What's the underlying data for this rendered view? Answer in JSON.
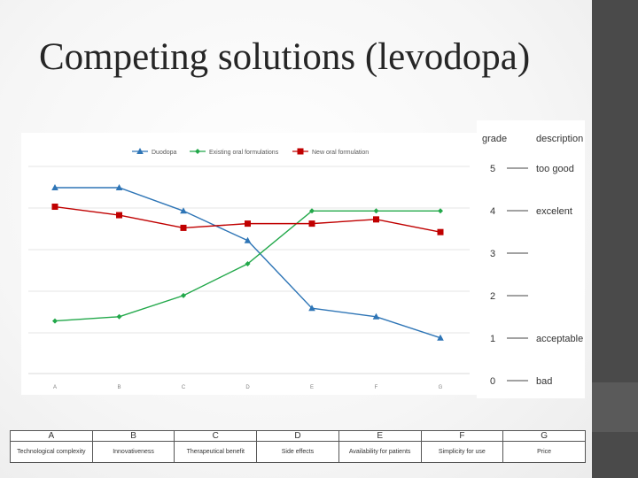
{
  "slide": {
    "title": "Competing solutions (levodopa)"
  },
  "chart_data": {
    "type": "line",
    "title": "",
    "xlabel": "",
    "ylabel": "",
    "categories": [
      "A",
      "B",
      "C",
      "D",
      "E",
      "F",
      "G"
    ],
    "ylim": [
      0.5,
      5.0
    ],
    "grid": true,
    "legend_position": "top",
    "series": [
      {
        "name": "Duodopa",
        "color": "#2e75b6",
        "marker": "triangle",
        "values": [
          4.55,
          4.55,
          4.0,
          3.3,
          1.7,
          1.5,
          1.0
        ]
      },
      {
        "name": "Existing oral formulations",
        "color": "#22a84a",
        "marker": "diamond",
        "values": [
          1.4,
          1.5,
          2.0,
          2.75,
          4.0,
          4.0,
          4.0
        ]
      },
      {
        "name": "New oral formulation",
        "color": "#c00000",
        "marker": "square",
        "values": [
          4.1,
          3.9,
          3.6,
          3.7,
          3.7,
          3.8,
          3.5
        ]
      }
    ]
  },
  "grade_scale": {
    "headers": {
      "grade": "grade",
      "description": "description"
    },
    "rows": [
      {
        "grade": "5",
        "description": "too good"
      },
      {
        "grade": "4",
        "description": "excelent"
      },
      {
        "grade": "3",
        "description": ""
      },
      {
        "grade": "2",
        "description": ""
      },
      {
        "grade": "1",
        "description": "acceptable"
      },
      {
        "grade": "0",
        "description": "bad"
      }
    ]
  },
  "criteria_table": {
    "letters": [
      "A",
      "B",
      "C",
      "D",
      "E",
      "F",
      "G"
    ],
    "names": [
      "Technological complexity",
      "Innovativeness",
      "Therapeutical benefit",
      "Side effects",
      "Availability for patients",
      "Simplicity for use",
      "Price"
    ]
  }
}
